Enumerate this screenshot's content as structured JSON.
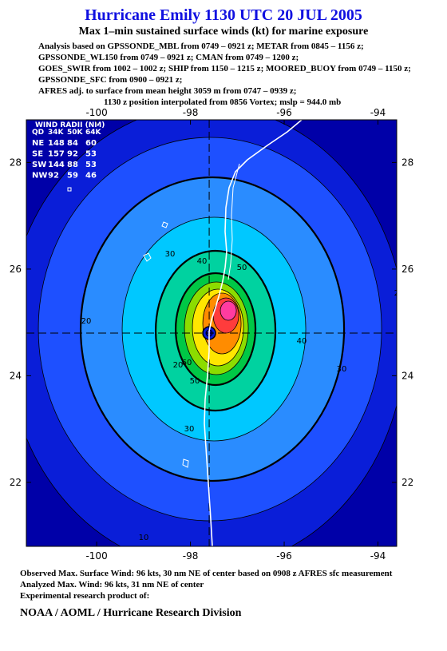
{
  "header": {
    "title": "Hurricane Emily 1130 UTC 20 JUL 2005",
    "subtitle": "Max 1–min sustained surface winds (kt) for marine exposure",
    "analysis_lines": [
      "Analysis based on  GPSSONDE_MBL from 0749 – 0921 z;  METAR from 0845 – 1156 z;",
      "GPSSONDE_WL150 from 0749 – 0921 z;  CMAN from 0749 – 1200 z;",
      "GOES_SWIR from 1002 – 1002 z;  SHIP from 1150 – 1215 z;  MOORED_BUOY from 0749 – 1150 z;",
      "GPSSONDE_SFC from 0900 – 0921 z;",
      "AFRES adj. to surface from mean height 3059 m from 0747 – 0939 z;",
      "1130 z position interpolated from 0856 Vortex; mslp = 944.0 mb"
    ]
  },
  "map": {
    "xlim": [
      -101.5,
      -93.6
    ],
    "ylim": [
      20.8,
      28.8
    ],
    "xticks": [
      -100,
      -98,
      -96,
      -94
    ],
    "yticks": [
      22,
      24,
      26,
      28
    ],
    "center": {
      "lon": -97.6,
      "lat": 24.8
    },
    "fill_colors": [
      "#0000a8",
      "#0a1ed8",
      "#1e50ff",
      "#2a8cff",
      "#00c8ff",
      "#00d2a0",
      "#00c846",
      "#8cdc00",
      "#ffe600",
      "#ff8c00",
      "#ff3c3c",
      "#ff3ca0"
    ],
    "contour_labels": [
      "10",
      "20",
      "20",
      "20",
      "30",
      "30",
      "30",
      "40",
      "40",
      "50",
      "50",
      "60"
    ],
    "wind_radii": {
      "title": "WIND RADII (NM)",
      "columns": [
        "QD",
        "34K",
        "50K",
        "64K"
      ],
      "rows": [
        [
          "NE",
          "148",
          "84",
          "60"
        ],
        [
          "SE",
          "157",
          "92",
          "53"
        ],
        [
          "SW",
          "144",
          "88",
          "53"
        ],
        [
          "NW",
          "92",
          "59",
          "46"
        ]
      ]
    }
  },
  "footer": {
    "lines": [
      "Observed Max. Surface Wind: 96 kts, 30 nm NE of center based on 0908 z AFRES sfc measurement",
      "Analyzed Max. Wind: 96 kts, 31 nm NE of center",
      "Experimental research product of:"
    ],
    "org": "NOAA / AOML / Hurricane Research Division"
  }
}
